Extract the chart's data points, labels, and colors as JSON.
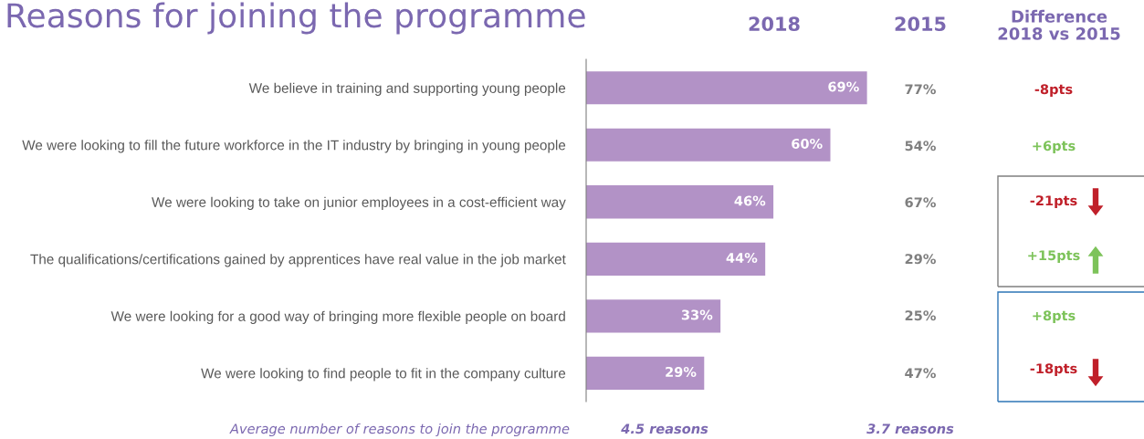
{
  "chart_data": {
    "type": "bar",
    "orientation": "horizontal",
    "title": "Reasons for joining the programme",
    "categories": [
      "We believe in training and supporting young people",
      "We were looking to fill the future workforce in the IT industry by bringing in young people",
      "We were looking to take on junior employees in a cost-efficient way",
      "The qualifications/certifications gained by apprentices have real value in the job market",
      "We were looking for a good way of bringing more flexible people on board",
      "We were looking to find people to fit in the company culture"
    ],
    "series": [
      {
        "name": "2018",
        "color": "#b292c6",
        "values": [
          69,
          60,
          46,
          44,
          33,
          29
        ],
        "value_labels": [
          "69%",
          "60%",
          "46%",
          "44%",
          "33%",
          "29%"
        ]
      }
    ],
    "tick_labels": "y",
    "grid": false,
    "legend": false,
    "annotations": [
      "2015",
      "Difference\n2018 vs 2015",
      "77%",
      "54%",
      "67%",
      "29%",
      "25%",
      "47%",
      "-8pts",
      "+6pts",
      "-21pts",
      "+15pts",
      "+8pts",
      "-18pts",
      "Average number of reasons to join the programme",
      "4.5 reasons",
      "3.7 reasons"
    ]
  }
}
